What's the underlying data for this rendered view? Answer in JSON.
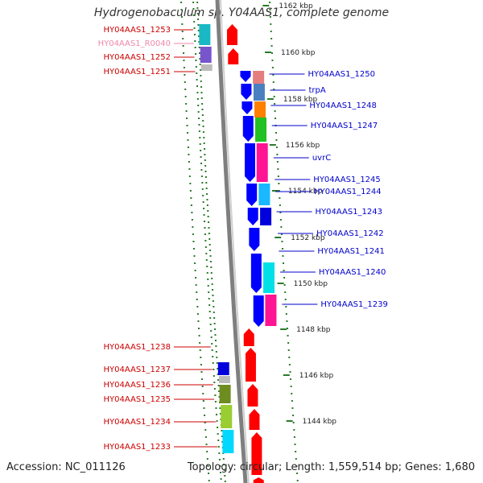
{
  "title": "Hydrogenobaculum sp. Y04AAS1, complete genome",
  "footer": {
    "accession": "Accession: NC_011126",
    "summary": "Topology: circular; Length: 1,559,514 bp; Genes: 1,680"
  },
  "colors": {
    "forward_strand": "#ff0000",
    "reverse_strand": "#0000ff",
    "left_gene_label": "#cc0000",
    "rna_gene_label": "#ee88aa",
    "right_gene_label": "#0000cc",
    "tick": "#2a7a2a",
    "backbone": "#7f7f7f"
  },
  "tick_labels": [
    "1162 kbp",
    "1160 kbp",
    "1158 kbp",
    "1156 kbp",
    "1154 kbp",
    "1152 kbp",
    "1150 kbp",
    "1148 kbp",
    "1146 kbp",
    "1144 kbp"
  ],
  "left_genes": [
    {
      "name": "HY04AAS1_1253",
      "type": "CDS"
    },
    {
      "name": "HY04AAS1_R0040",
      "type": "RNA"
    },
    {
      "name": "HY04AAS1_1252",
      "type": "CDS"
    },
    {
      "name": "HY04AAS1_1251",
      "type": "CDS"
    },
    {
      "name": "HY04AAS1_1238",
      "type": "CDS"
    },
    {
      "name": "HY04AAS1_1237",
      "type": "CDS"
    },
    {
      "name": "HY04AAS1_1236",
      "type": "CDS"
    },
    {
      "name": "HY04AAS1_1235",
      "type": "CDS"
    },
    {
      "name": "HY04AAS1_1234",
      "type": "CDS"
    },
    {
      "name": "HY04AAS1_1233",
      "type": "CDS"
    }
  ],
  "right_genes": [
    {
      "name": "HY04AAS1_1250"
    },
    {
      "name": "trpA"
    },
    {
      "name": "HY04AAS1_1248"
    },
    {
      "name": "HY04AAS1_1247"
    },
    {
      "name": "uvrC"
    },
    {
      "name": "HY04AAS1_1245"
    },
    {
      "name": "HY04AAS1_1244"
    },
    {
      "name": "HY04AAS1_1243"
    },
    {
      "name": "HY04AAS1_1242"
    },
    {
      "name": "HY04AAS1_1241"
    },
    {
      "name": "HY04AAS1_1240"
    },
    {
      "name": "HY04AAS1_1239"
    }
  ]
}
